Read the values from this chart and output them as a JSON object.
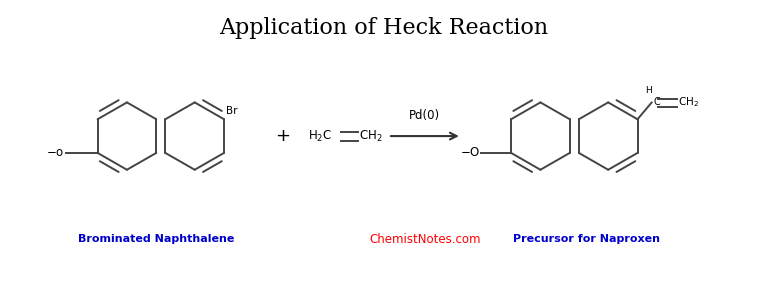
{
  "title": "Application of Heck Reaction",
  "title_fontsize": 16,
  "title_font": "serif",
  "background_color": "#ffffff",
  "label_brominated": "Brominated Naphthalene",
  "label_precursor": "Precursor for Naproxen",
  "label_website": "ChemistNotes.com",
  "label_catalyst": "Pd(0)",
  "color_blue": "#0000CC",
  "color_red": "#FF0000",
  "color_black": "#000000",
  "line_color": "#444444",
  "line_width": 1.4,
  "arrow_color": "#333333"
}
